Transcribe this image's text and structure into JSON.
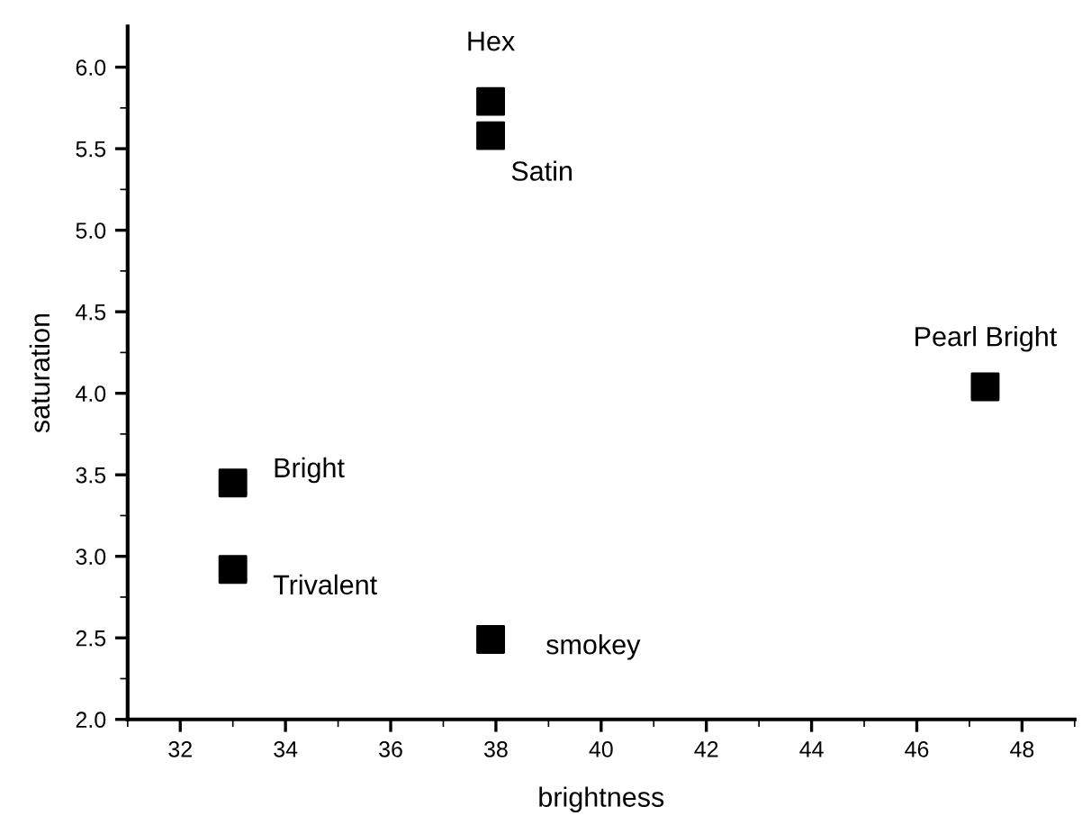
{
  "chart_data": {
    "type": "scatter",
    "xlabel": "brightness",
    "ylabel": "saturation",
    "xlim": [
      31,
      49
    ],
    "ylim": [
      2.0,
      6.25
    ],
    "xticks": [
      32,
      34,
      36,
      38,
      40,
      42,
      44,
      46,
      48
    ],
    "yticks": [
      {
        "value": 2.0,
        "label": "2.0"
      },
      {
        "value": 2.5,
        "label": "2.5"
      },
      {
        "value": 3.0,
        "label": "3.0"
      },
      {
        "value": 3.5,
        "label": "3.5"
      },
      {
        "value": 4.0,
        "label": "4.0"
      },
      {
        "value": 4.5,
        "label": "4.5"
      },
      {
        "value": 5.0,
        "label": "5.0"
      },
      {
        "value": 5.5,
        "label": "5.5"
      },
      {
        "value": 6.0,
        "label": "6.0"
      }
    ],
    "x": [
      37.9,
      37.9,
      33.0,
      33.0,
      37.9,
      47.3
    ],
    "series": [
      {
        "color": "#000000",
        "values": [
          5.79,
          5.58,
          3.45,
          2.92,
          2.49,
          4.04
        ]
      }
    ],
    "marker": "square",
    "grid": false,
    "legend": false,
    "annotations": [
      {
        "text": "Hex",
        "x": 37.9,
        "y": 5.79
      },
      {
        "text": "Satin",
        "x": 37.9,
        "y": 5.58
      },
      {
        "text": "Bright",
        "x": 33.0,
        "y": 3.45
      },
      {
        "text": "Trivalent",
        "x": 33.0,
        "y": 2.92
      },
      {
        "text": "smokey",
        "x": 37.9,
        "y": 2.49
      },
      {
        "text": "Pearl Bright",
        "x": 47.3,
        "y": 4.04
      }
    ]
  }
}
